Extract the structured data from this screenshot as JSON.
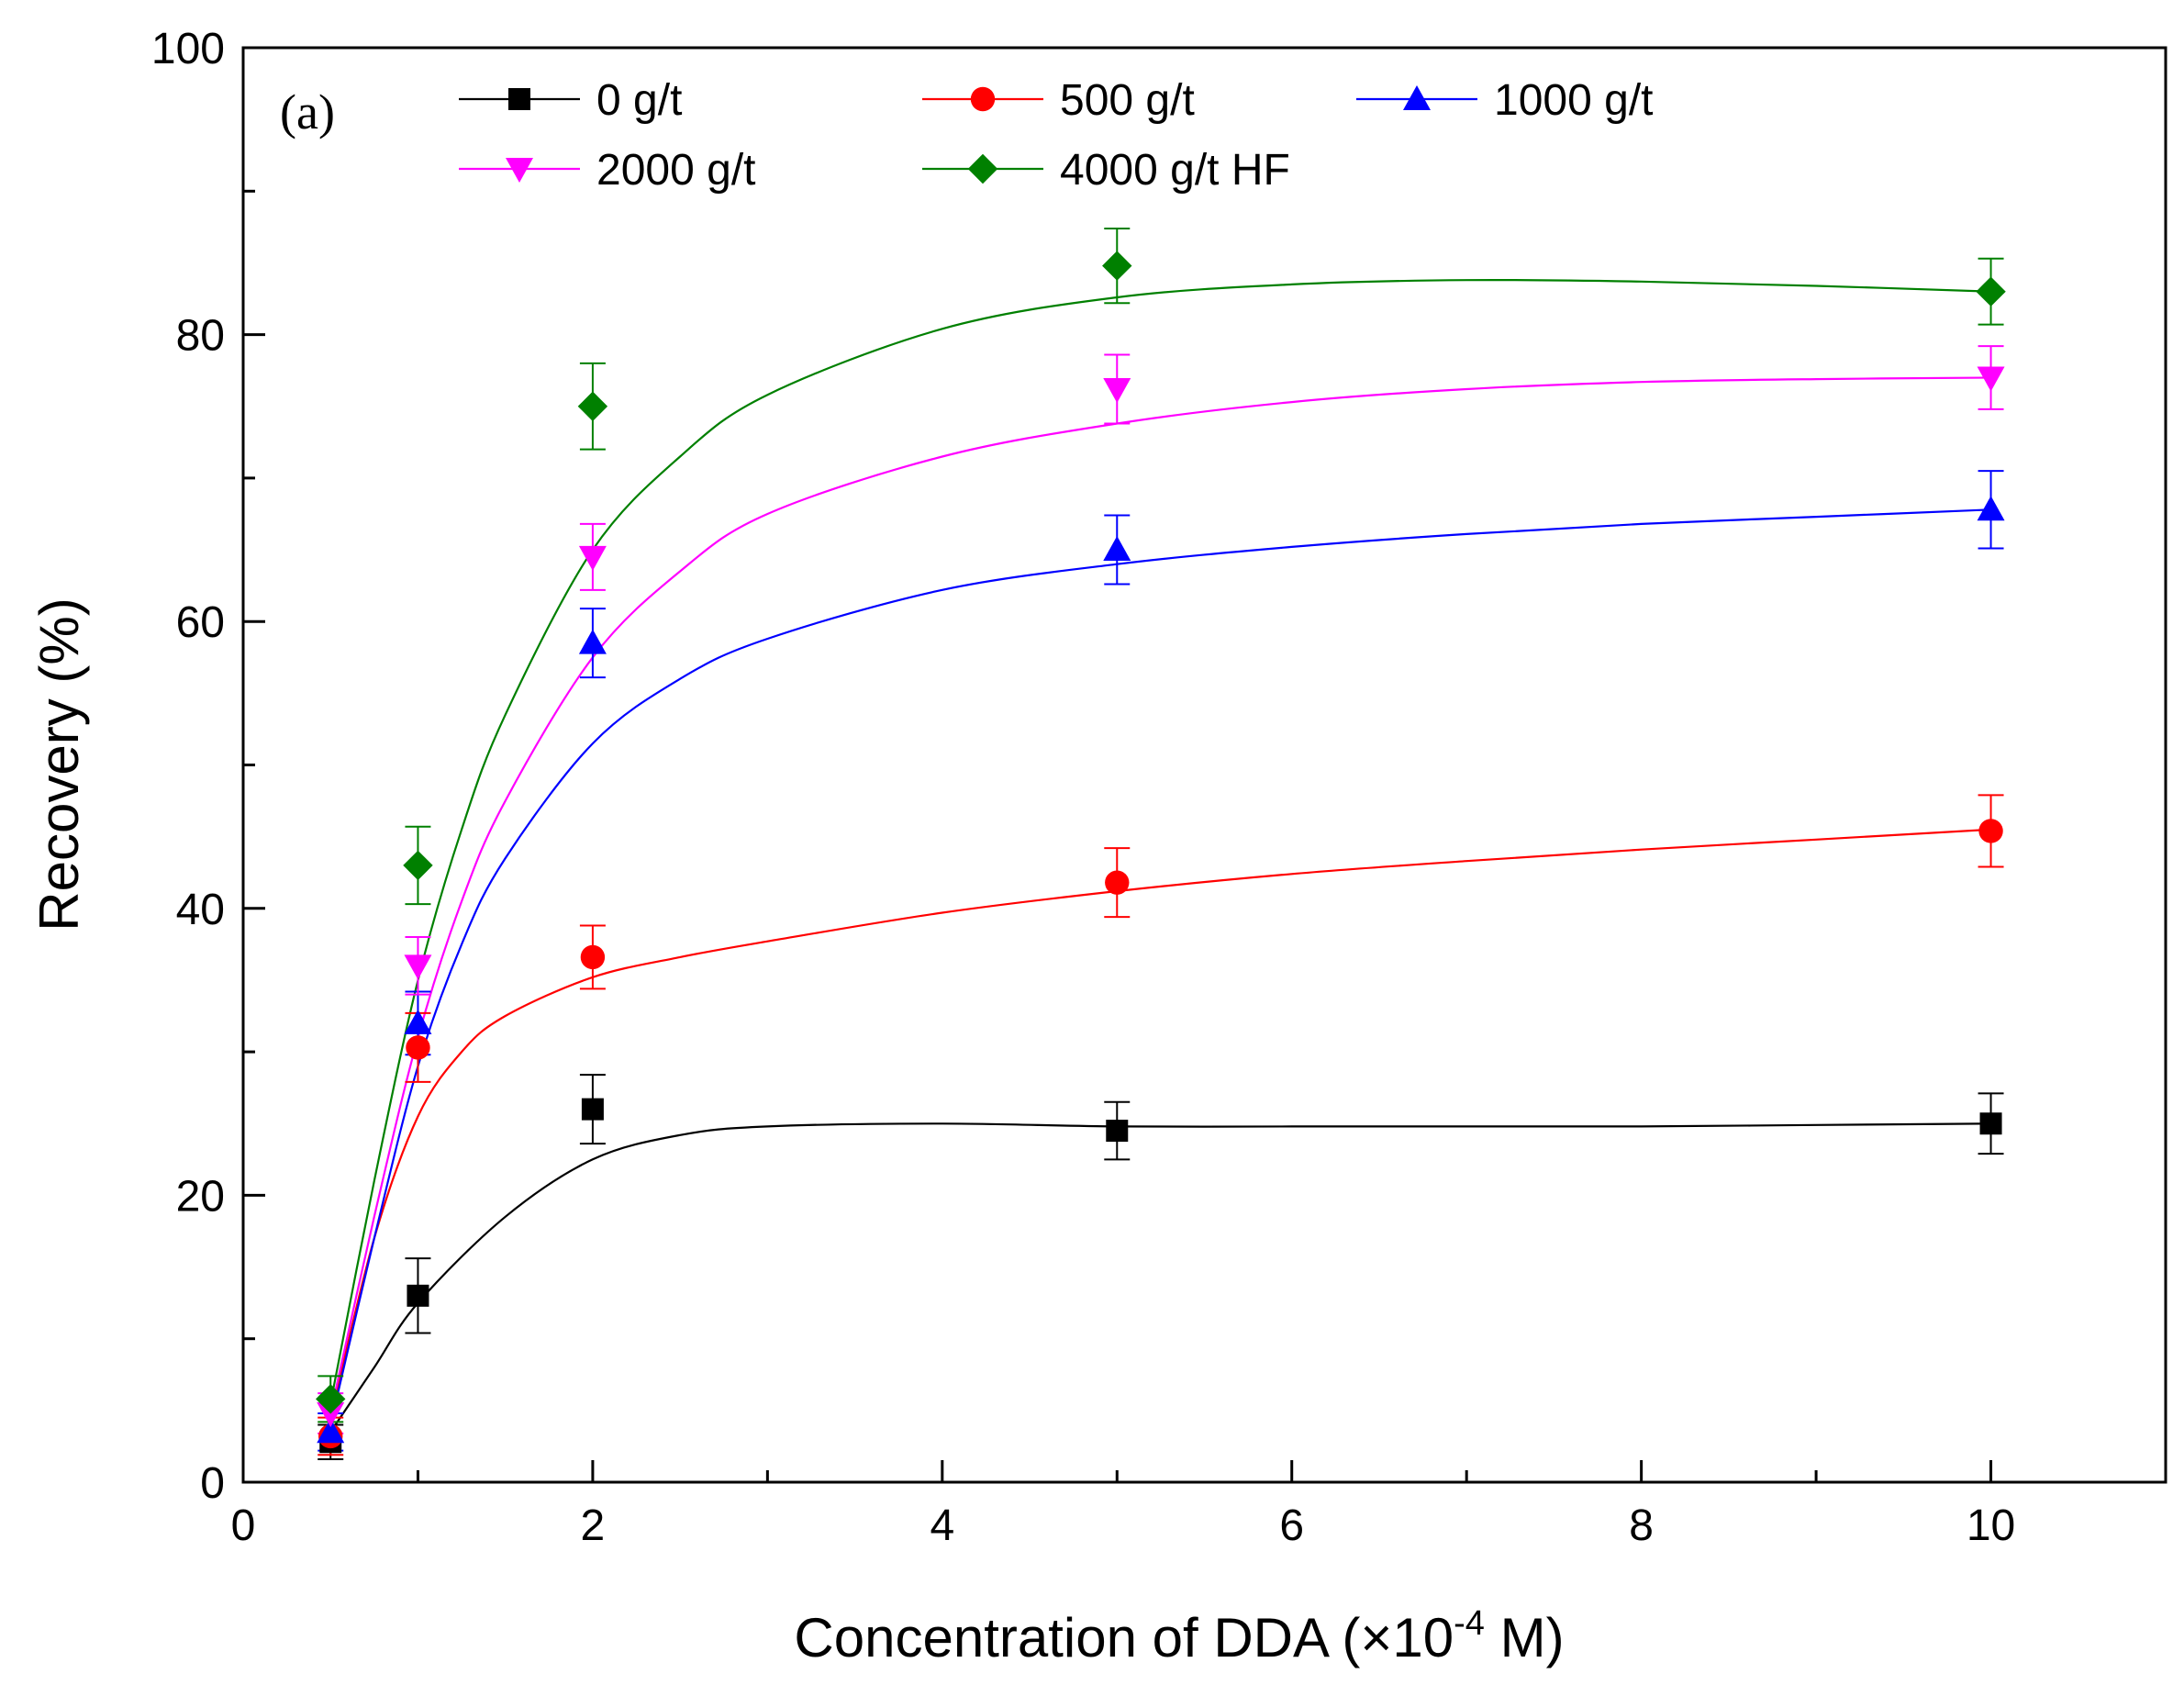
{
  "chart_data": {
    "type": "scatter",
    "panel_label": "(a)",
    "xlabel_main": "Concentration of DDA (",
    "xlabel_times": "×10",
    "xlabel_exp": "-4",
    "xlabel_unit": " M)",
    "ylabel": "Recovery (%)",
    "xlim": [
      0,
      11
    ],
    "ylim": [
      0,
      100
    ],
    "x_ticks": [
      0,
      2,
      4,
      6,
      8,
      10
    ],
    "x_tick_labels": [
      "0",
      "2",
      "4",
      "6",
      "8",
      "10"
    ],
    "y_ticks": [
      0,
      20,
      40,
      60,
      80,
      100
    ],
    "y_tick_labels": [
      "0",
      "20",
      "40",
      "60",
      "80",
      "100"
    ],
    "x_minor_step": 1,
    "y_minor_step": 10,
    "grid": false,
    "legend_position": "top",
    "series": [
      {
        "name": "0 g/t",
        "color": "#000000",
        "marker": "square",
        "x": [
          0.5,
          1,
          2,
          5,
          10
        ],
        "y": [
          2.8,
          13,
          26,
          24.5,
          25
        ],
        "err": [
          1.2,
          2.6,
          2.4,
          2.0,
          2.1
        ],
        "fit_x": [
          0.5,
          0.75,
          1,
          1.5,
          2,
          2.5,
          3,
          4,
          5,
          6,
          7,
          8,
          9,
          10
        ],
        "fit_y": [
          3.5,
          8,
          12.5,
          18.5,
          22.5,
          24.2,
          24.8,
          25,
          24.8,
          24.8,
          24.8,
          24.8,
          24.9,
          25
        ]
      },
      {
        "name": "500 g/t",
        "color": "#ff0000",
        "marker": "circle",
        "x": [
          0.5,
          1,
          2,
          5,
          10
        ],
        "y": [
          3.2,
          30.3,
          36.6,
          41.8,
          45.4
        ],
        "err": [
          1.3,
          2.4,
          2.2,
          2.4,
          2.5
        ],
        "fit_x": [
          0.5,
          0.75,
          1,
          1.25,
          1.5,
          2,
          2.5,
          3,
          4,
          5,
          6,
          7,
          8,
          9,
          10
        ],
        "fit_y": [
          4.5,
          17,
          25.5,
          30,
          32.5,
          35.2,
          36.6,
          37.7,
          39.7,
          41.2,
          42.4,
          43.3,
          44.1,
          44.8,
          45.5
        ]
      },
      {
        "name": "1000 g/t",
        "color": "#0000ff",
        "marker": "triangle-up",
        "x": [
          0.5,
          1,
          2,
          5,
          10
        ],
        "y": [
          3.5,
          32,
          58.5,
          65,
          67.8
        ],
        "err": [
          1.3,
          2.2,
          2.4,
          2.4,
          2.7
        ],
        "fit_x": [
          0.5,
          0.75,
          1,
          1.25,
          1.5,
          2,
          2.5,
          3,
          4,
          5,
          6,
          7,
          8,
          9,
          10
        ],
        "fit_y": [
          4,
          17,
          29,
          37.5,
          43.5,
          51.5,
          56,
          58.8,
          62.2,
          64,
          65.2,
          66.1,
          66.8,
          67.3,
          67.8
        ]
      },
      {
        "name": "2000 g/t",
        "color": "#ff00ff",
        "marker": "triangle-down",
        "x": [
          0.5,
          1,
          2,
          5,
          10
        ],
        "y": [
          4.8,
          36,
          64.5,
          76.2,
          77
        ],
        "err": [
          1.4,
          2.0,
          2.3,
          2.4,
          2.2
        ],
        "fit_x": [
          0.5,
          0.75,
          1,
          1.25,
          1.5,
          2,
          2.5,
          3,
          4,
          5,
          6,
          7,
          8,
          9,
          10
        ],
        "fit_y": [
          4.8,
          18.5,
          31,
          40.5,
          47.5,
          57.5,
          63.5,
          67.5,
          71.5,
          73.8,
          75.3,
          76.2,
          76.7,
          76.9,
          77
        ]
      },
      {
        "name": "4000 g/t HF",
        "color": "#008000",
        "marker": "diamond",
        "x": [
          0.5,
          1,
          2,
          5,
          10
        ],
        "y": [
          5.8,
          43,
          75,
          84.8,
          83
        ],
        "err": [
          1.6,
          2.7,
          3.0,
          2.6,
          2.3
        ],
        "fit_x": [
          0.5,
          0.75,
          1,
          1.25,
          1.5,
          2,
          2.5,
          3,
          4,
          5,
          6,
          7,
          8,
          9,
          10
        ],
        "fit_y": [
          5.5,
          21,
          35,
          45.5,
          53.5,
          65,
          71.5,
          75.8,
          80.4,
          82.6,
          83.5,
          83.8,
          83.7,
          83.4,
          83
        ]
      }
    ]
  }
}
